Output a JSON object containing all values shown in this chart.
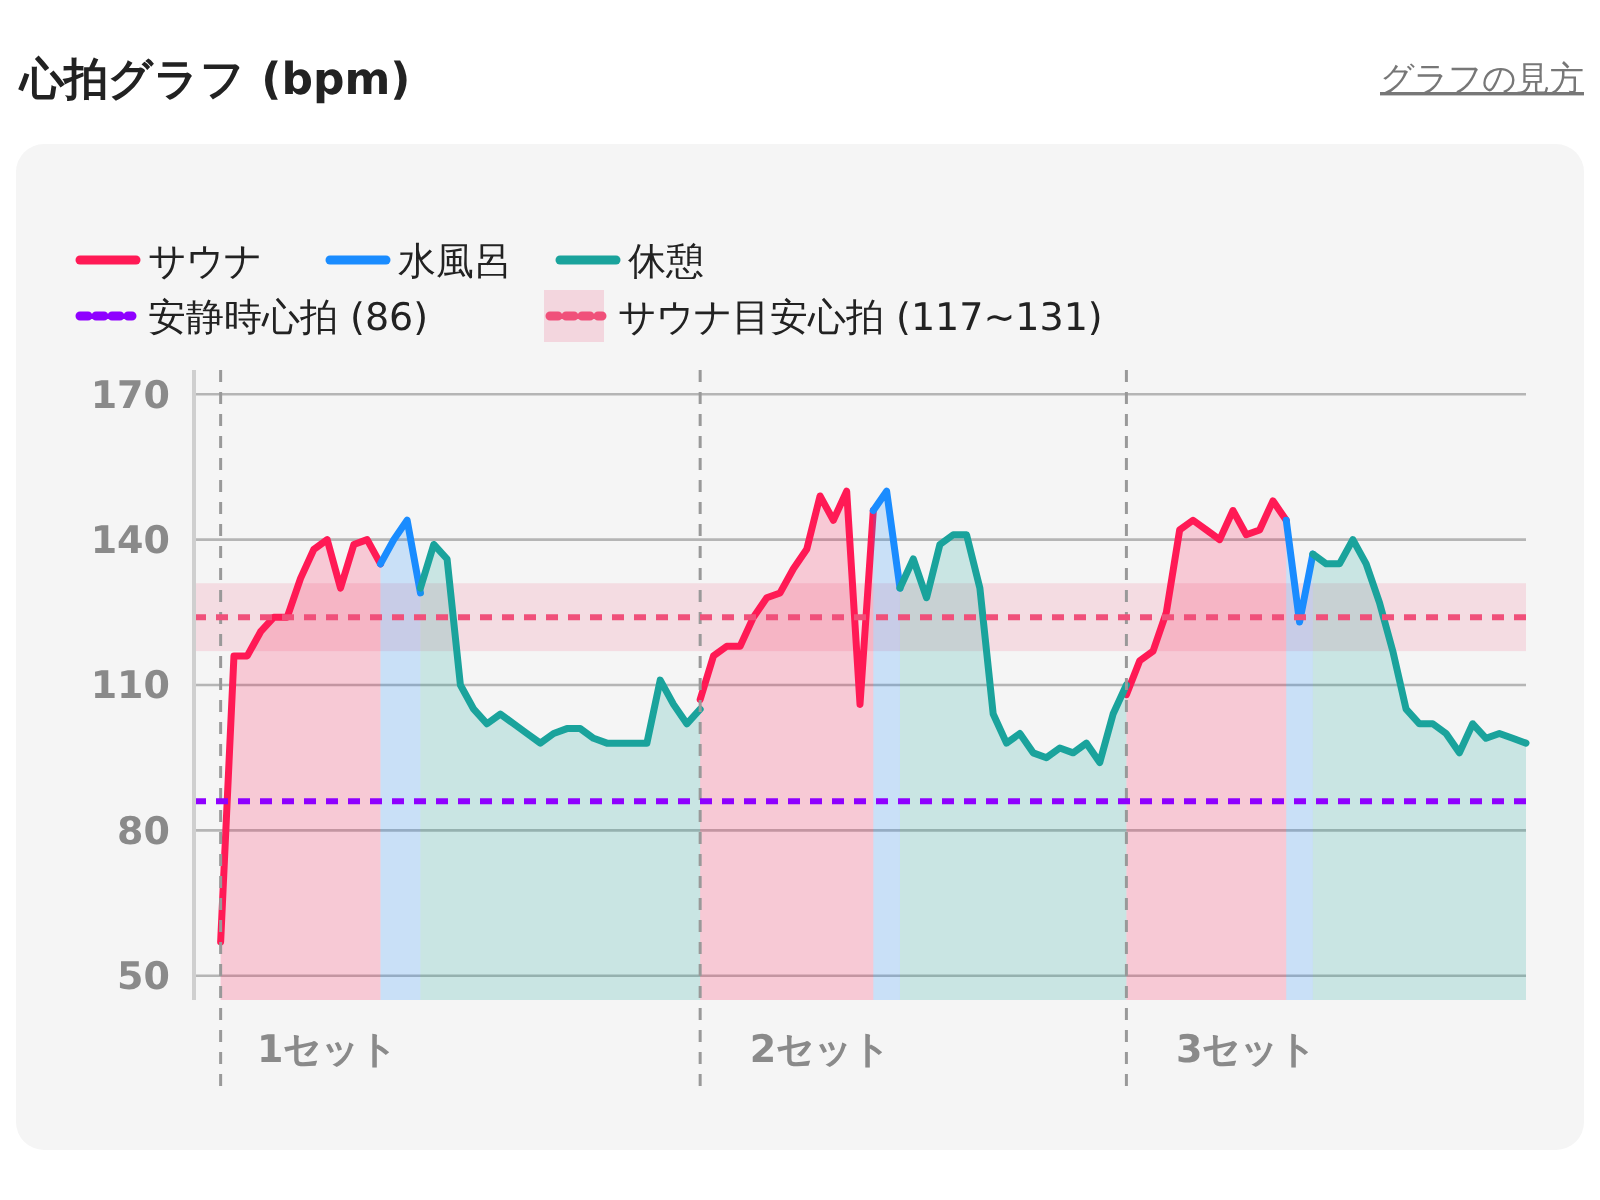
{
  "chart_data": {
    "type": "area",
    "title": "心拍グラフ (bpm)",
    "annotations": [
      "グラフの見方"
    ],
    "categories": [
      null,
      null,
      null,
      null,
      null,
      null,
      null,
      null,
      null,
      null,
      "1セット",
      null,
      null,
      null,
      null,
      null,
      null,
      null,
      null,
      null,
      null,
      null,
      null,
      null,
      null,
      null,
      null,
      null,
      null,
      null,
      null,
      null,
      null,
      null,
      null,
      null,
      null,
      null,
      null,
      null,
      null,
      null,
      null,
      null,
      null,
      null,
      null,
      "2セット",
      null,
      null,
      null,
      null,
      null,
      null,
      null,
      null,
      null,
      null,
      null,
      null,
      null,
      null,
      null,
      null,
      null,
      null,
      null,
      null,
      null,
      null,
      null,
      null,
      null,
      null,
      null,
      null,
      null,
      null,
      null,
      "3セット",
      null,
      null,
      null,
      null,
      null,
      null,
      null,
      null,
      null,
      null,
      null,
      null,
      null,
      null,
      null,
      null,
      null,
      null,
      null,
      null,
      null
    ],
    "ylim": [
      45,
      175
    ],
    "yticks": [
      50,
      80,
      110,
      140,
      170
    ],
    "grid": "y",
    "legend": "top left",
    "line_style": "solid",
    "marker": "none",
    "series": [
      {
        "name": "サウナ",
        "color": "#ff1a55",
        "values": [
          null,
          null,
          57,
          116,
          116,
          121,
          124,
          124,
          132,
          138,
          140,
          130,
          139,
          140,
          135,
          null,
          null,
          null,
          null,
          null,
          null,
          null,
          null,
          null,
          null,
          null,
          null,
          null,
          null,
          null,
          null,
          null,
          null,
          null,
          null,
          null,
          null,
          null,
          107,
          116,
          118,
          118,
          124,
          128,
          129,
          134,
          138,
          149,
          144,
          150,
          106,
          146,
          null,
          null,
          null,
          null,
          null,
          null,
          null,
          null,
          null,
          null,
          null,
          null,
          null,
          null,
          null,
          null,
          null,
          null,
          108,
          115,
          117,
          125,
          142,
          144,
          142,
          140,
          146,
          141,
          142,
          148,
          144,
          null,
          null,
          null,
          null,
          null,
          null,
          null,
          null,
          null,
          null,
          null,
          null,
          null,
          null,
          null,
          null,
          null,
          null
        ]
      },
      {
        "name": "水風呂",
        "color": "#1a8cff",
        "values": [
          null,
          null,
          null,
          null,
          null,
          null,
          null,
          null,
          null,
          null,
          null,
          null,
          null,
          null,
          135,
          140,
          144,
          129,
          null,
          null,
          null,
          null,
          null,
          null,
          null,
          null,
          null,
          null,
          null,
          null,
          null,
          null,
          null,
          null,
          null,
          null,
          null,
          null,
          null,
          null,
          null,
          null,
          null,
          null,
          null,
          null,
          null,
          null,
          null,
          null,
          null,
          146,
          150,
          130,
          null,
          null,
          null,
          null,
          null,
          null,
          null,
          null,
          null,
          null,
          null,
          null,
          null,
          null,
          null,
          null,
          null,
          null,
          null,
          null,
          null,
          null,
          null,
          null,
          null,
          null,
          null,
          null,
          144,
          123,
          137,
          null,
          null,
          null,
          null,
          null,
          null,
          null,
          null,
          null,
          null,
          null,
          null,
          null,
          null,
          null,
          null
        ]
      },
      {
        "name": "休憩",
        "color": "#1aa39c",
        "values": [
          null,
          null,
          null,
          null,
          null,
          null,
          null,
          null,
          null,
          null,
          null,
          null,
          null,
          null,
          null,
          null,
          null,
          130,
          139,
          136,
          110,
          105,
          102,
          104,
          102,
          100,
          98,
          100,
          101,
          101,
          99,
          98,
          98,
          98,
          98,
          111,
          106,
          102,
          105,
          null,
          null,
          null,
          null,
          null,
          null,
          null,
          null,
          null,
          null,
          null,
          null,
          null,
          null,
          130,
          136,
          128,
          139,
          141,
          141,
          130,
          104,
          98,
          100,
          96,
          95,
          97,
          96,
          98,
          94,
          104,
          110,
          null,
          null,
          null,
          null,
          null,
          null,
          null,
          null,
          null,
          null,
          null,
          null,
          null,
          137,
          135,
          135,
          140,
          135,
          127,
          117,
          105,
          102,
          102,
          100,
          96,
          102,
          99,
          100,
          99,
          98
        ]
      }
    ],
    "ref_lines": [
      {
        "axis": "y",
        "value": 86,
        "label": "安静時心拍 (86)",
        "color": "#8f00ff",
        "line_style": "dashed"
      },
      {
        "axis": "y",
        "value": 124,
        "label": null,
        "color": "#f0507a",
        "line_style": "dashed"
      }
    ],
    "bands": [
      {
        "axis": "y",
        "from": 117,
        "to": 131,
        "label": "サウナ目安心拍 (117~131)",
        "color": "#f0507a"
      }
    ]
  }
}
